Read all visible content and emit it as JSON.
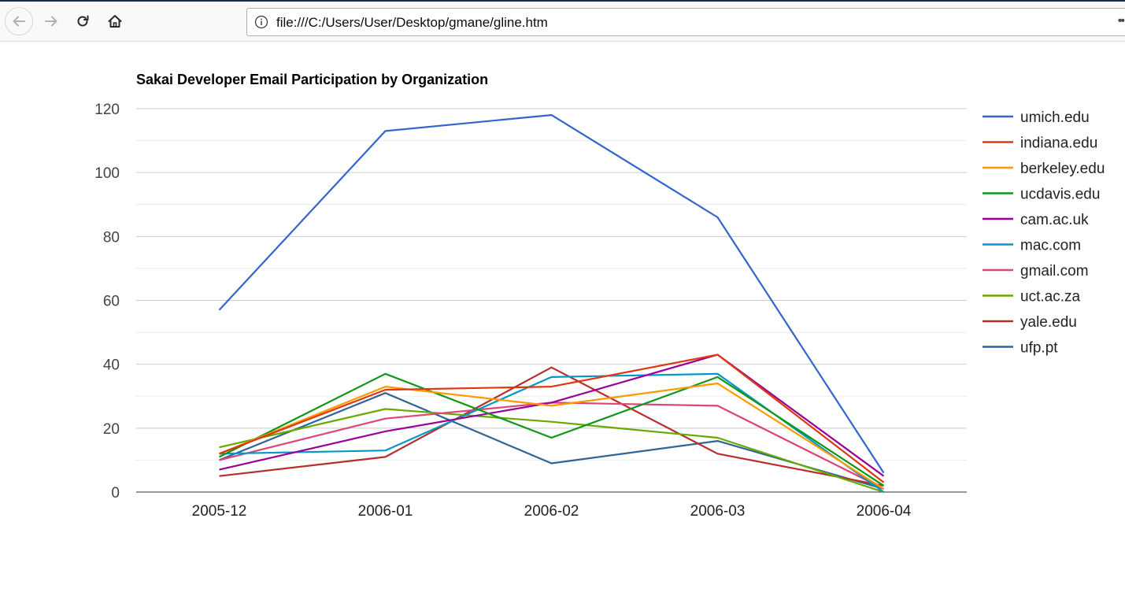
{
  "browser": {
    "url": "file:///C:/Users/User/Desktop/gmane/gline.htm"
  },
  "chart_data": {
    "type": "line",
    "title": "Sakai Developer Email Participation by Organization",
    "xlabel": "",
    "ylabel": "",
    "categories": [
      "2005-12",
      "2006-01",
      "2006-02",
      "2006-03",
      "2006-04"
    ],
    "ylim": [
      0,
      120
    ],
    "yticks": [
      0,
      20,
      40,
      60,
      80,
      100,
      120
    ],
    "grid": true,
    "legend_position": "right",
    "series": [
      {
        "name": "umich.edu",
        "color": "#3366cc",
        "values": [
          57,
          113,
          118,
          86,
          6
        ]
      },
      {
        "name": "indiana.edu",
        "color": "#dc3912",
        "values": [
          12,
          32,
          33,
          43,
          3
        ]
      },
      {
        "name": "berkeley.edu",
        "color": "#ff9900",
        "values": [
          12,
          33,
          27,
          34,
          1
        ]
      },
      {
        "name": "ucdavis.edu",
        "color": "#109618",
        "values": [
          11,
          37,
          17,
          36,
          2
        ]
      },
      {
        "name": "cam.ac.uk",
        "color": "#990099",
        "values": [
          7,
          19,
          28,
          43,
          5
        ]
      },
      {
        "name": "mac.com",
        "color": "#0099c6",
        "values": [
          12,
          13,
          36,
          37,
          0
        ]
      },
      {
        "name": "gmail.com",
        "color": "#dd4477",
        "values": [
          10,
          23,
          28,
          27,
          1
        ]
      },
      {
        "name": "uct.ac.za",
        "color": "#66aa00",
        "values": [
          14,
          26,
          22,
          17,
          0
        ]
      },
      {
        "name": "yale.edu",
        "color": "#b82e2e",
        "values": [
          5,
          11,
          39,
          12,
          2
        ]
      },
      {
        "name": "ufp.pt",
        "color": "#316395",
        "values": [
          10,
          31,
          9,
          16,
          1
        ]
      }
    ]
  }
}
